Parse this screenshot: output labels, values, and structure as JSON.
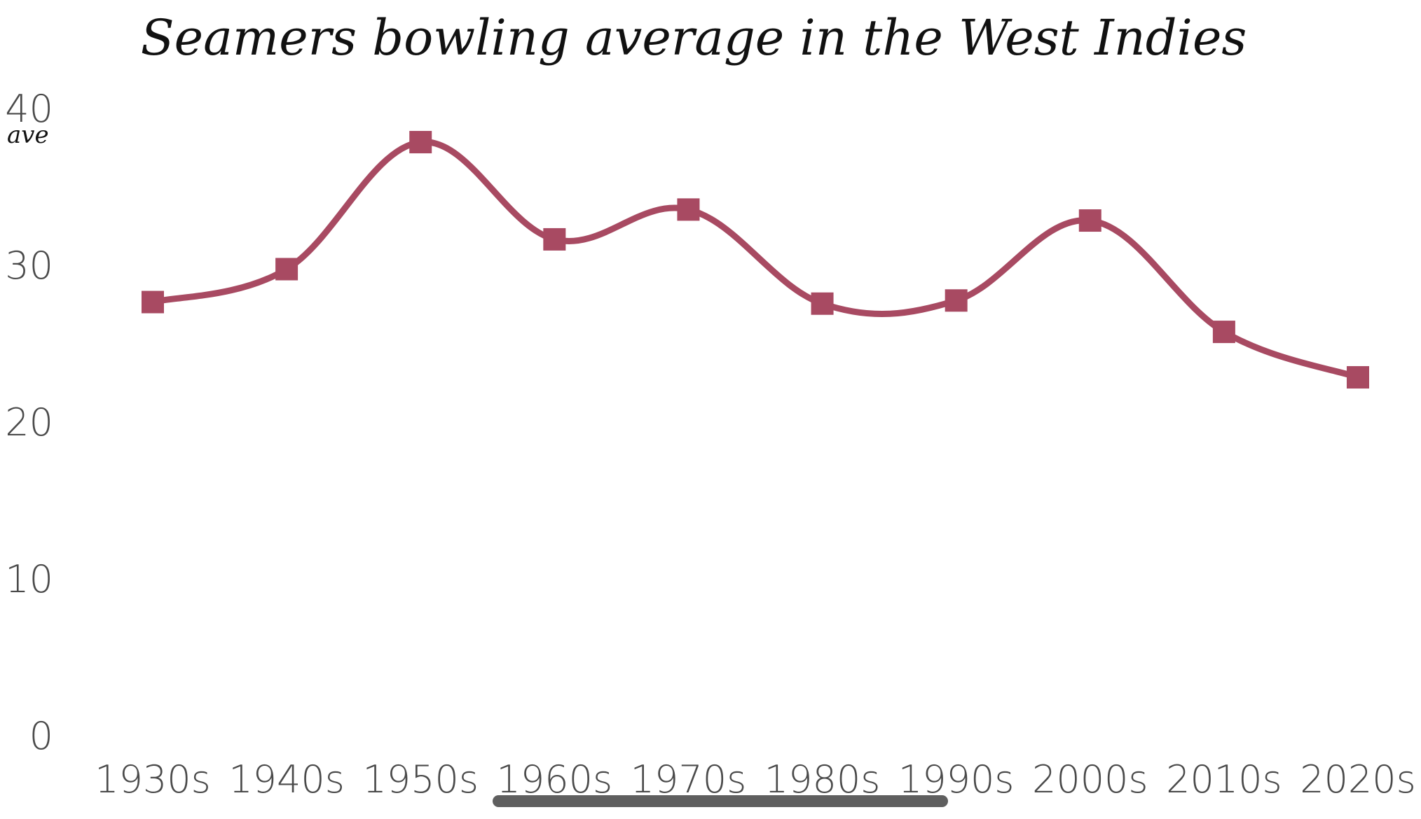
{
  "chart_data": {
    "type": "line",
    "title": "Seamers bowling average in the West Indies",
    "xlabel": "",
    "ylabel": "ave",
    "categories": [
      "1930s",
      "1940s",
      "1950s",
      "1960s",
      "1970s",
      "1980s",
      "1990s",
      "2000s",
      "2010s",
      "2020s"
    ],
    "series": [
      {
        "values": [
          27.7,
          29.8,
          37.9,
          31.7,
          33.6,
          27.6,
          27.8,
          32.9,
          25.8,
          22.9
        ],
        "color": "#a84a62",
        "marker": "square",
        "smooth": true
      }
    ],
    "yticks": [
      "0",
      "10",
      "20",
      "30",
      "40"
    ],
    "ylim": [
      0,
      40
    ],
    "grid": false,
    "legend": "none"
  },
  "ui": {
    "scroll_indicator_color": "#5f5f5f"
  }
}
